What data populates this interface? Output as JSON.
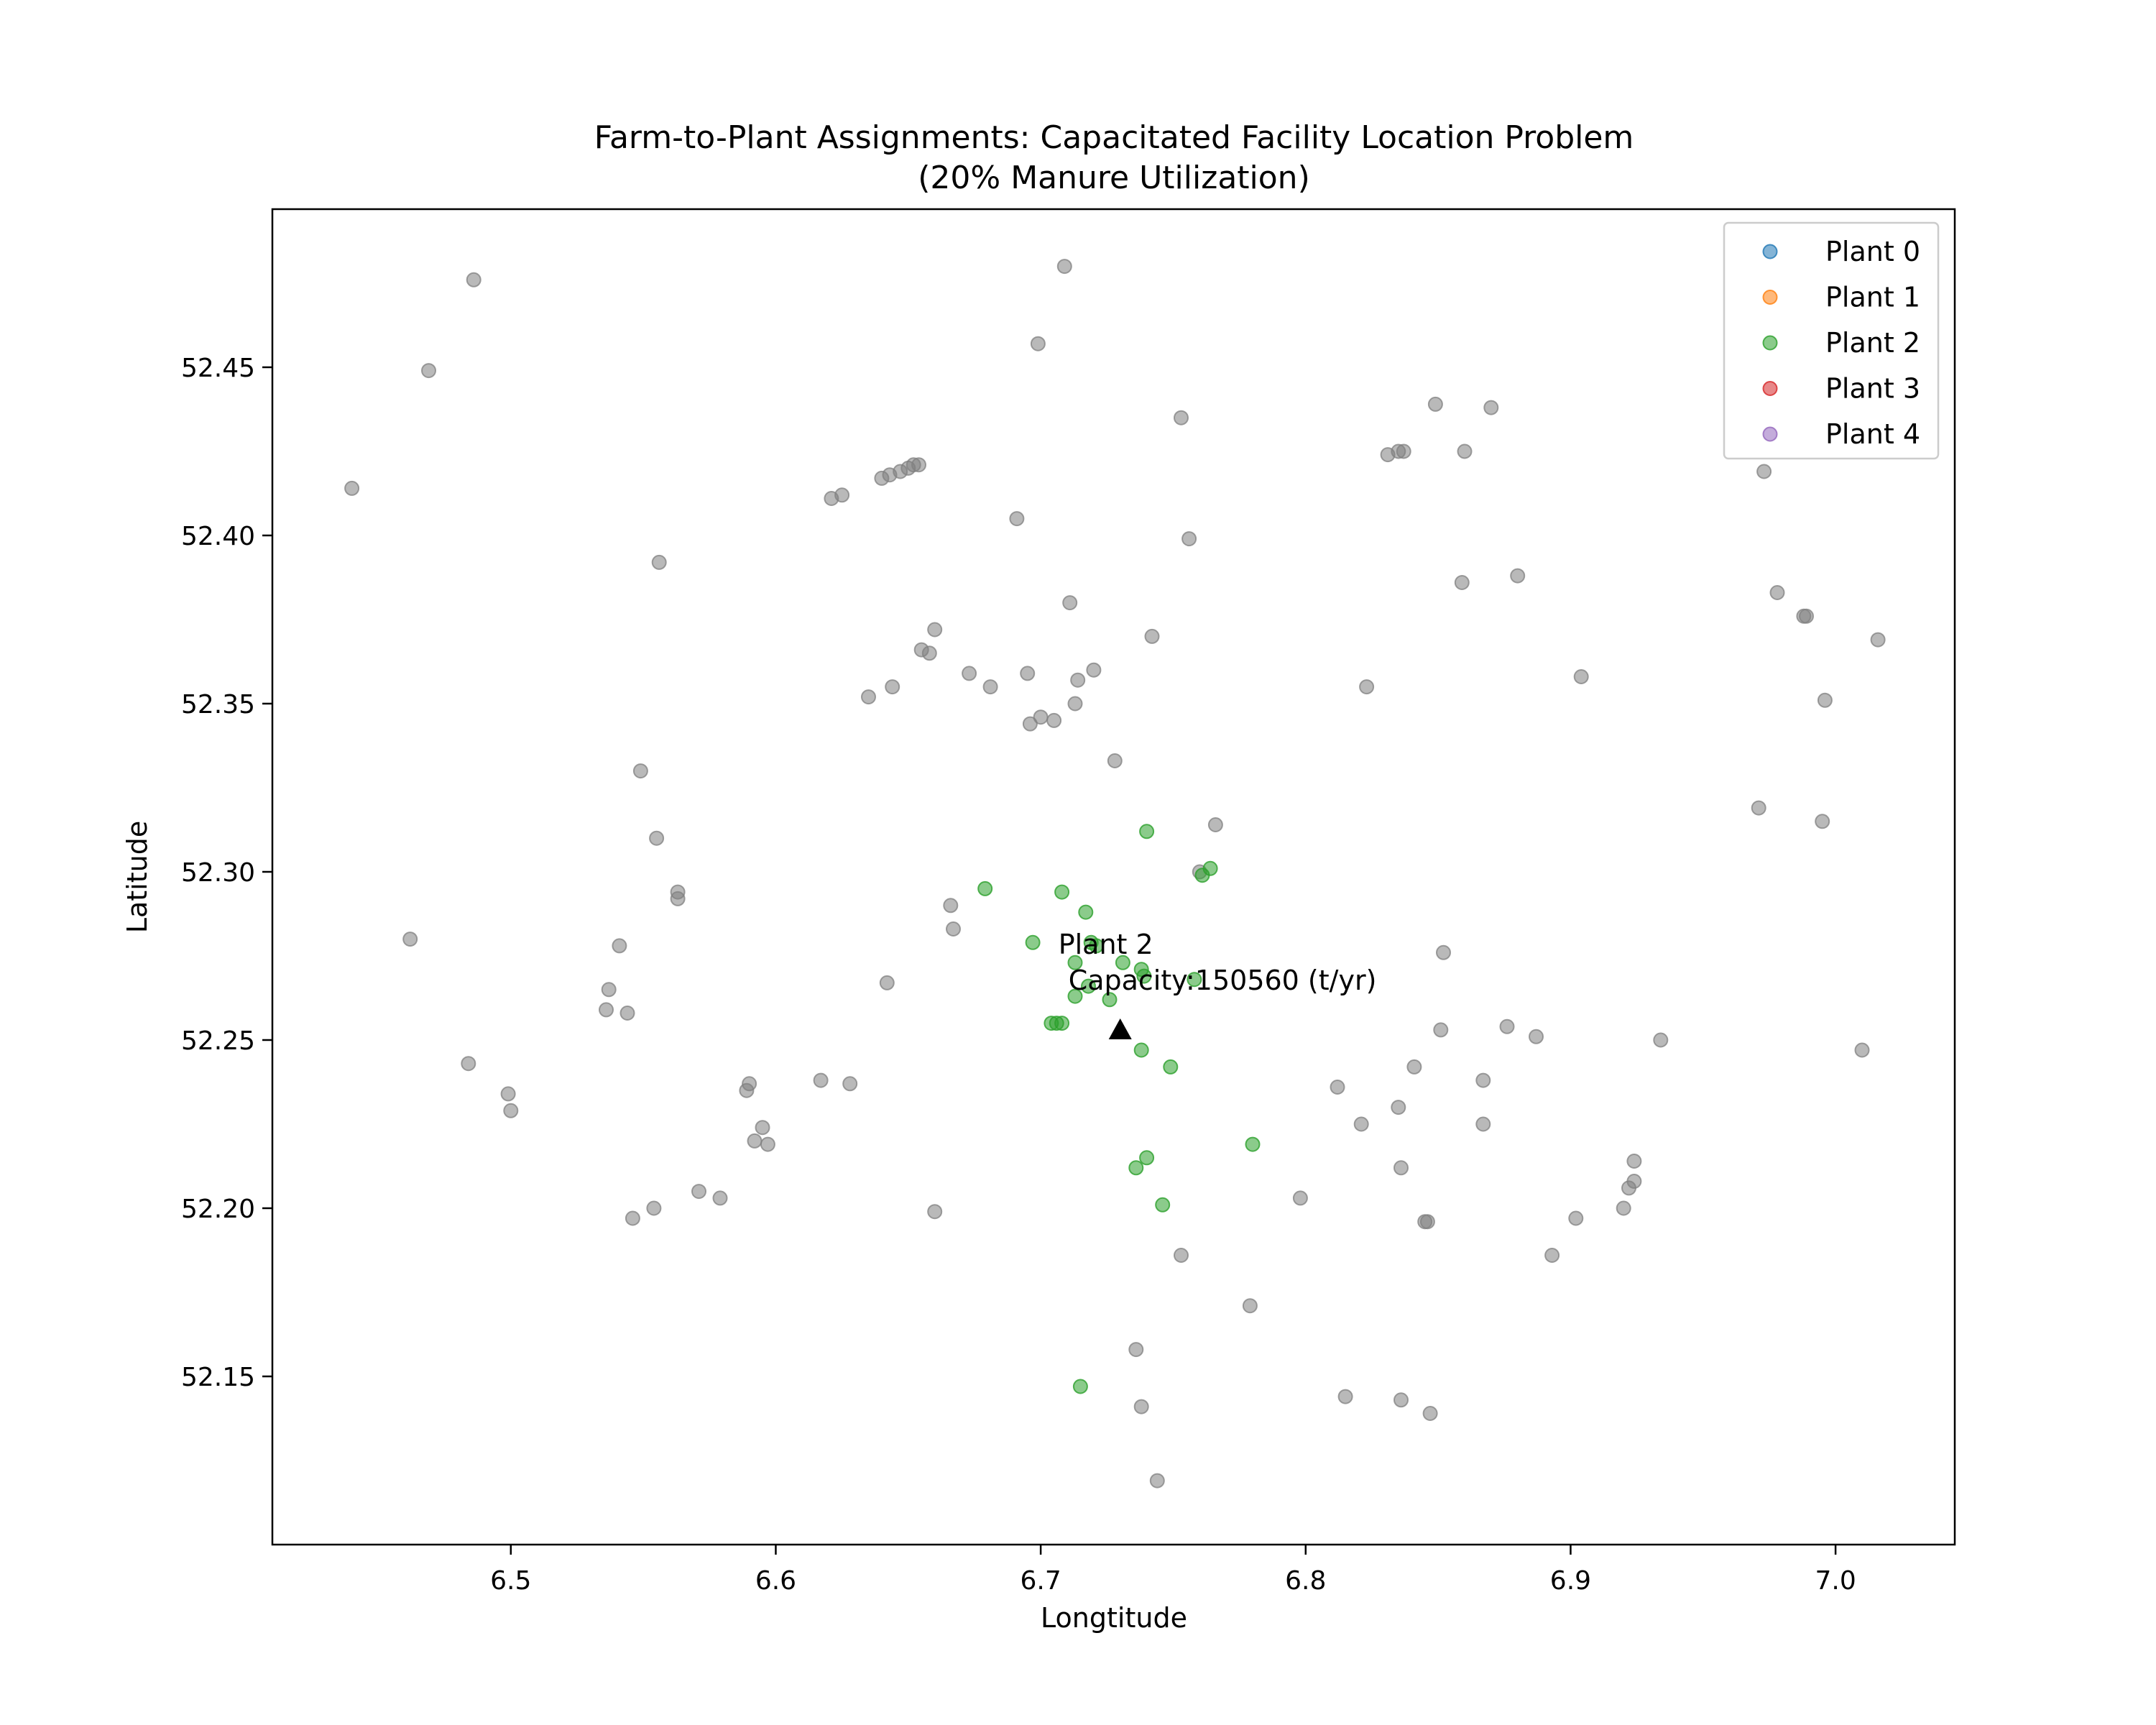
{
  "chart_data": {
    "type": "scatter",
    "title": "Farm-to-Plant Assignments: Capacitated Facility Location Problem",
    "subtitle": "(20% Manure Utilization)",
    "xlabel": "Longtitude",
    "ylabel": "Latitude",
    "xlim": [
      6.41,
      7.045
    ],
    "ylim": [
      52.1,
      52.497
    ],
    "x_ticks": [
      6.5,
      6.6,
      6.7,
      6.8,
      6.9,
      7.0
    ],
    "x_tick_labels": [
      "6.5",
      "6.6",
      "6.7",
      "6.8",
      "6.9",
      "7.0"
    ],
    "y_ticks": [
      52.15,
      52.2,
      52.25,
      52.3,
      52.35,
      52.4,
      52.45
    ],
    "y_tick_labels": [
      "52.15",
      "52.20",
      "52.25",
      "52.30",
      "52.35",
      "52.40",
      "52.45"
    ],
    "grid": false,
    "legend": {
      "position": "top-right",
      "entries": [
        {
          "label": "Plant 0",
          "color": "#1f77b4"
        },
        {
          "label": "Plant 1",
          "color": "#ff7f0e"
        },
        {
          "label": "Plant 2",
          "color": "#2ca02c"
        },
        {
          "label": "Plant 3",
          "color": "#d62728"
        },
        {
          "label": "Plant 4",
          "color": "#9467bd"
        }
      ]
    },
    "unassigned_color": "#808080",
    "unassigned_points": [
      [
        6.486,
        52.476
      ],
      [
        6.469,
        52.449
      ],
      [
        6.44,
        52.414
      ],
      [
        6.709,
        52.48
      ],
      [
        6.699,
        52.457
      ],
      [
        6.753,
        52.435
      ],
      [
        6.849,
        52.439
      ],
      [
        6.87,
        52.438
      ],
      [
        6.831,
        52.424
      ],
      [
        6.835,
        52.425
      ],
      [
        6.837,
        52.425
      ],
      [
        6.86,
        52.425
      ],
      [
        6.973,
        52.419
      ],
      [
        6.556,
        52.392
      ],
      [
        6.621,
        52.411
      ],
      [
        6.625,
        52.412
      ],
      [
        6.64,
        52.417
      ],
      [
        6.643,
        52.418
      ],
      [
        6.647,
        52.419
      ],
      [
        6.65,
        52.42
      ],
      [
        6.652,
        52.421
      ],
      [
        6.654,
        52.421
      ],
      [
        6.691,
        52.405
      ],
      [
        6.756,
        52.399
      ],
      [
        6.859,
        52.386
      ],
      [
        6.88,
        52.388
      ],
      [
        6.978,
        52.383
      ],
      [
        6.988,
        52.376
      ],
      [
        6.989,
        52.376
      ],
      [
        7.016,
        52.369
      ],
      [
        6.711,
        52.38
      ],
      [
        6.742,
        52.37
      ],
      [
        6.66,
        52.372
      ],
      [
        6.655,
        52.366
      ],
      [
        6.658,
        52.365
      ],
      [
        6.673,
        52.359
      ],
      [
        6.695,
        52.359
      ],
      [
        6.714,
        52.357
      ],
      [
        6.72,
        52.36
      ],
      [
        6.644,
        52.355
      ],
      [
        6.681,
        52.355
      ],
      [
        6.635,
        52.352
      ],
      [
        6.713,
        52.35
      ],
      [
        6.7,
        52.346
      ],
      [
        6.705,
        52.345
      ],
      [
        6.696,
        52.344
      ],
      [
        6.823,
        52.355
      ],
      [
        6.904,
        52.358
      ],
      [
        6.996,
        52.351
      ],
      [
        6.728,
        52.333
      ],
      [
        6.549,
        52.33
      ],
      [
        6.555,
        52.31
      ],
      [
        6.766,
        52.314
      ],
      [
        6.971,
        52.319
      ],
      [
        6.995,
        52.315
      ],
      [
        6.76,
        52.3
      ],
      [
        6.563,
        52.294
      ],
      [
        6.563,
        52.292
      ],
      [
        6.666,
        52.29
      ],
      [
        6.667,
        52.283
      ],
      [
        6.462,
        52.28
      ],
      [
        6.541,
        52.278
      ],
      [
        6.852,
        52.276
      ],
      [
        6.537,
        52.265
      ],
      [
        6.536,
        52.259
      ],
      [
        6.544,
        52.258
      ],
      [
        6.642,
        52.267
      ],
      [
        6.851,
        52.253
      ],
      [
        6.876,
        52.254
      ],
      [
        6.887,
        52.251
      ],
      [
        6.934,
        52.25
      ],
      [
        7.01,
        52.247
      ],
      [
        6.484,
        52.243
      ],
      [
        6.499,
        52.234
      ],
      [
        6.5,
        52.229
      ],
      [
        6.59,
        52.237
      ],
      [
        6.589,
        52.235
      ],
      [
        6.617,
        52.238
      ],
      [
        6.628,
        52.237
      ],
      [
        6.595,
        52.224
      ],
      [
        6.592,
        52.22
      ],
      [
        6.597,
        52.219
      ],
      [
        6.812,
        52.236
      ],
      [
        6.841,
        52.242
      ],
      [
        6.867,
        52.238
      ],
      [
        6.835,
        52.23
      ],
      [
        6.821,
        52.225
      ],
      [
        6.867,
        52.225
      ],
      [
        6.836,
        52.212
      ],
      [
        6.924,
        52.214
      ],
      [
        6.924,
        52.208
      ],
      [
        6.922,
        52.206
      ],
      [
        6.571,
        52.205
      ],
      [
        6.579,
        52.203
      ],
      [
        6.554,
        52.2
      ],
      [
        6.546,
        52.197
      ],
      [
        6.66,
        52.199
      ],
      [
        6.798,
        52.203
      ],
      [
        6.845,
        52.196
      ],
      [
        6.846,
        52.196
      ],
      [
        6.902,
        52.197
      ],
      [
        6.92,
        52.2
      ],
      [
        6.753,
        52.186
      ],
      [
        6.893,
        52.186
      ],
      [
        6.779,
        52.171
      ],
      [
        6.736,
        52.158
      ],
      [
        6.815,
        52.144
      ],
      [
        6.836,
        52.143
      ],
      [
        6.847,
        52.139
      ],
      [
        6.738,
        52.141
      ],
      [
        6.744,
        52.119
      ]
    ],
    "series": [
      {
        "name": "Plant 2",
        "color": "#2ca02c",
        "points": [
          [
            6.74,
            52.312
          ],
          [
            6.764,
            52.301
          ],
          [
            6.761,
            52.299
          ],
          [
            6.679,
            52.295
          ],
          [
            6.708,
            52.294
          ],
          [
            6.717,
            52.288
          ],
          [
            6.697,
            52.279
          ],
          [
            6.719,
            52.279
          ],
          [
            6.721,
            52.278
          ],
          [
            6.713,
            52.273
          ],
          [
            6.731,
            52.273
          ],
          [
            6.738,
            52.271
          ],
          [
            6.739,
            52.269
          ],
          [
            6.758,
            52.268
          ],
          [
            6.718,
            52.266
          ],
          [
            6.713,
            52.263
          ],
          [
            6.726,
            52.262
          ],
          [
            6.704,
            52.255
          ],
          [
            6.706,
            52.255
          ],
          [
            6.708,
            52.255
          ],
          [
            6.738,
            52.247
          ],
          [
            6.749,
            52.242
          ],
          [
            6.78,
            52.219
          ],
          [
            6.74,
            52.215
          ],
          [
            6.736,
            52.212
          ],
          [
            6.746,
            52.201
          ],
          [
            6.715,
            52.147
          ]
        ]
      }
    ],
    "plants": [
      {
        "name": "Plant 2",
        "x": 6.73,
        "y": 52.253,
        "label_line1": "Plant 2",
        "label_line2": "Capacity:150560 (t/yr)"
      }
    ]
  }
}
